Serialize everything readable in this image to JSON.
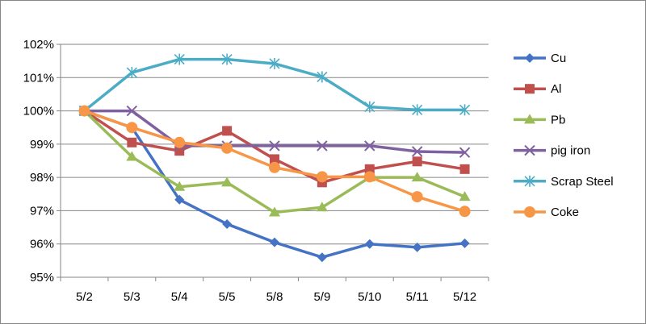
{
  "chart_data": {
    "type": "line",
    "title": "",
    "xlabel": "",
    "ylabel": "",
    "categories": [
      "5/2",
      "5/3",
      "5/4",
      "5/5",
      "5/8",
      "5/9",
      "5/10",
      "5/11",
      "5/12"
    ],
    "ylim": [
      95,
      102
    ],
    "yticks": [
      95,
      96,
      97,
      98,
      99,
      100,
      101,
      102
    ],
    "ytick_labels": [
      "95%",
      "96%",
      "97%",
      "98%",
      "99%",
      "100%",
      "101%",
      "102%"
    ],
    "grid": "horizontal",
    "legend_position": "right",
    "series": [
      {
        "name": "Cu",
        "color": "#4472C4",
        "marker": "diamond",
        "values": [
          100.0,
          99.5,
          97.33,
          96.6,
          96.05,
          95.6,
          96.0,
          95.9,
          96.02
        ]
      },
      {
        "name": "Al",
        "color": "#C0504D",
        "marker": "square",
        "values": [
          100.0,
          99.05,
          98.8,
          99.4,
          98.55,
          97.85,
          98.25,
          98.48,
          98.25
        ]
      },
      {
        "name": "Pb",
        "color": "#9BBB59",
        "marker": "triangle",
        "values": [
          100.0,
          98.62,
          97.72,
          97.85,
          96.95,
          97.1,
          98.0,
          98.0,
          97.42
        ]
      },
      {
        "name": "pig iron",
        "color": "#7F60A0",
        "marker": "x",
        "values": [
          100.0,
          100.0,
          98.95,
          98.95,
          98.95,
          98.95,
          98.95,
          98.78,
          98.75
        ]
      },
      {
        "name": "Scrap Steel",
        "color": "#4BACC6",
        "marker": "asterisk",
        "values": [
          100.0,
          101.15,
          101.55,
          101.55,
          101.42,
          101.02,
          100.12,
          100.03,
          100.03
        ]
      },
      {
        "name": "Coke",
        "color": "#F79646",
        "marker": "circle",
        "values": [
          100.0,
          99.5,
          99.05,
          98.88,
          98.3,
          98.02,
          98.02,
          97.42,
          96.98
        ]
      }
    ]
  }
}
